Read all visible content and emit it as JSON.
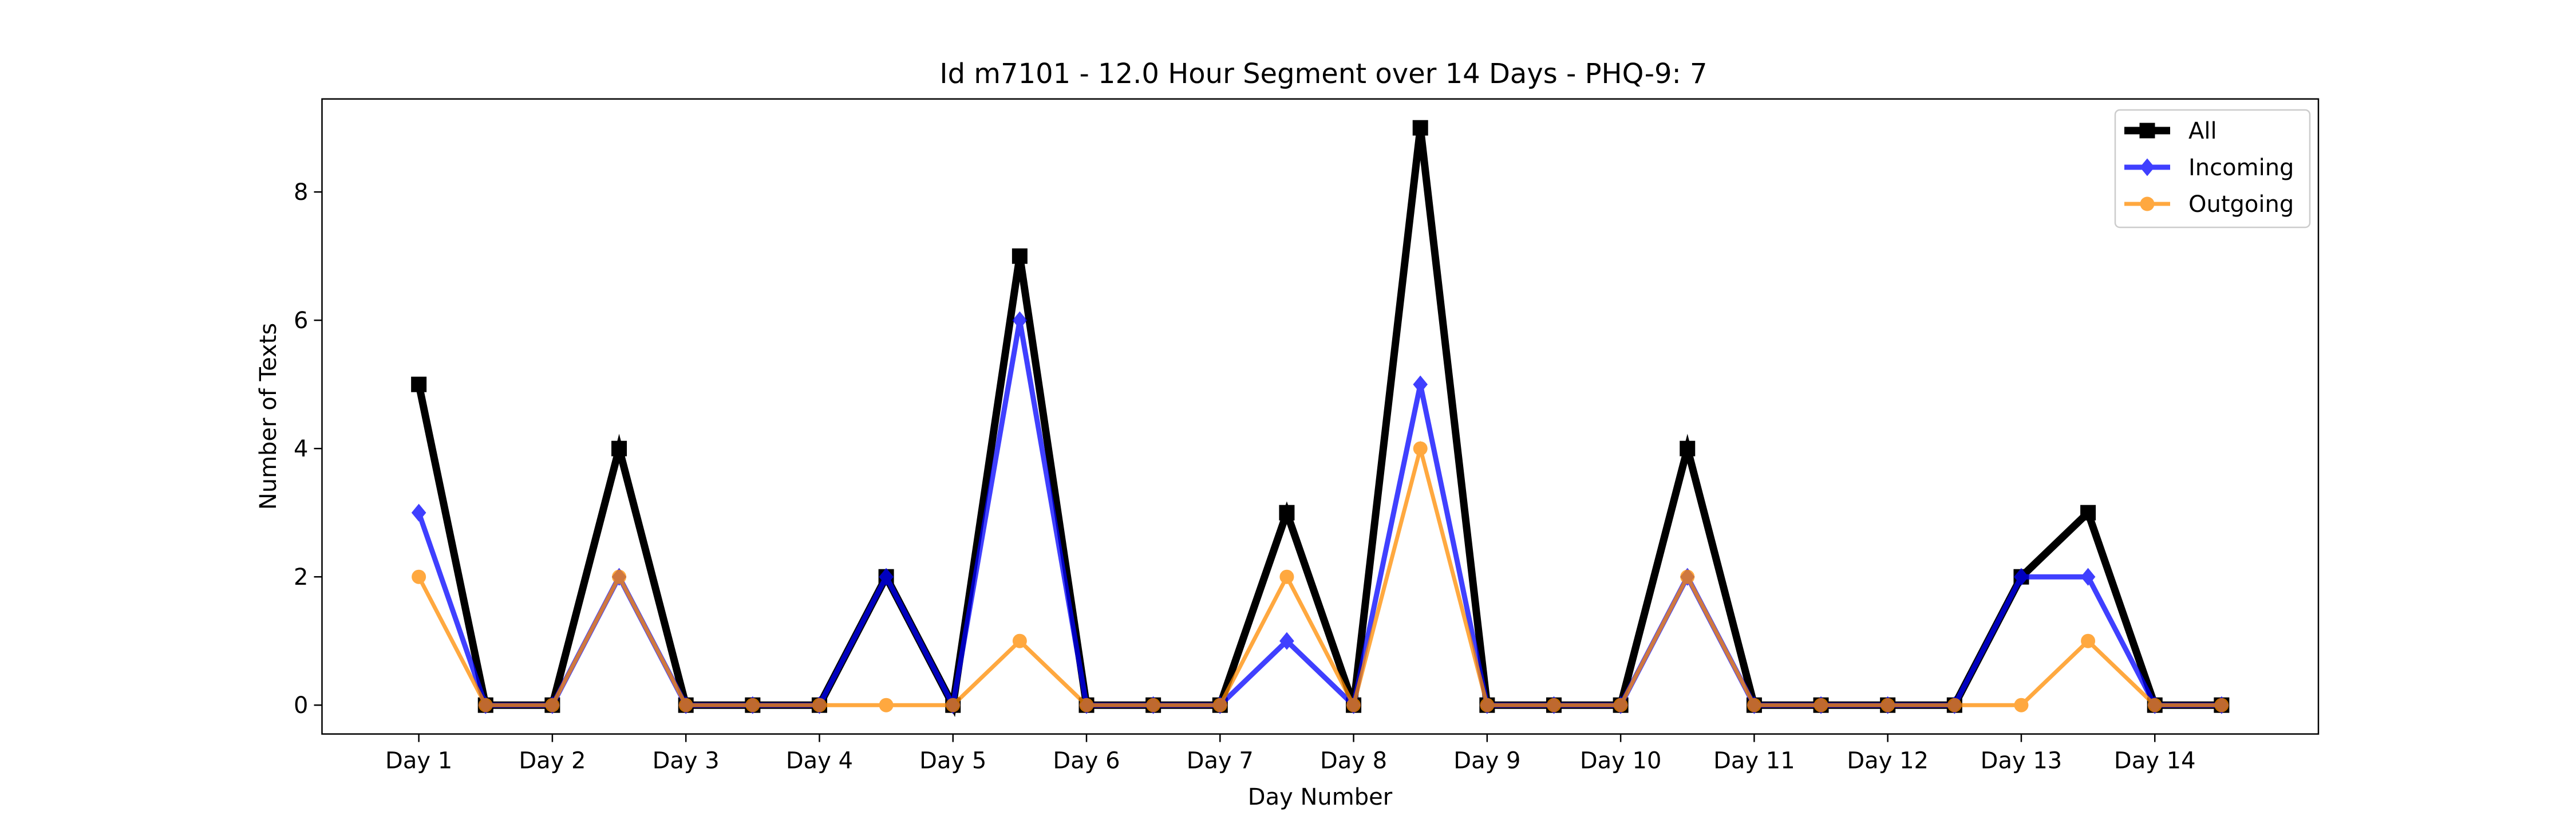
{
  "chart_data": {
    "type": "line",
    "title": "Id m7101 - 12.0 Hour Segment over 14 Days - PHQ-9: 7",
    "xlabel": "Day Number",
    "ylabel": "Number of Texts",
    "xlim": [
      -0.725,
      14.225
    ],
    "ylim": [
      -0.45,
      9.45
    ],
    "grid": false,
    "legend_position": "top-right",
    "x": [
      0,
      0.5,
      1,
      1.5,
      2,
      2.5,
      3,
      3.5,
      4,
      4.5,
      5,
      5.5,
      6,
      6.5,
      7,
      7.5,
      8,
      8.5,
      9,
      9.5,
      10,
      10.5,
      11,
      11.5,
      12,
      12.5,
      13,
      13.5
    ],
    "x_ticks": [
      {
        "pos": 0,
        "label": "Day 1"
      },
      {
        "pos": 1,
        "label": "Day 2"
      },
      {
        "pos": 2,
        "label": "Day 3"
      },
      {
        "pos": 3,
        "label": "Day 4"
      },
      {
        "pos": 4,
        "label": "Day 5"
      },
      {
        "pos": 5,
        "label": "Day 6"
      },
      {
        "pos": 6,
        "label": "Day 7"
      },
      {
        "pos": 7,
        "label": "Day 8"
      },
      {
        "pos": 8,
        "label": "Day 9"
      },
      {
        "pos": 9,
        "label": "Day 10"
      },
      {
        "pos": 10,
        "label": "Day 11"
      },
      {
        "pos": 11,
        "label": "Day 12"
      },
      {
        "pos": 12,
        "label": "Day 13"
      },
      {
        "pos": 13,
        "label": "Day 14"
      }
    ],
    "y_ticks": [
      {
        "pos": 0,
        "label": "0"
      },
      {
        "pos": 2,
        "label": "2"
      },
      {
        "pos": 4,
        "label": "4"
      },
      {
        "pos": 6,
        "label": "6"
      },
      {
        "pos": 8,
        "label": "8"
      }
    ],
    "series": [
      {
        "name": "All",
        "color": "#000000",
        "marker": "square",
        "values": [
          5,
          0,
          0,
          4,
          0,
          0,
          0,
          2,
          0,
          7,
          0,
          0,
          0,
          3,
          0,
          9,
          0,
          0,
          0,
          4,
          0,
          0,
          0,
          0,
          2,
          3,
          0,
          0
        ]
      },
      {
        "name": "Incoming",
        "color": "#0000ff",
        "marker": "diamond",
        "values": [
          3,
          0,
          0,
          2,
          0,
          0,
          0,
          2,
          0,
          6,
          0,
          0,
          0,
          1,
          0,
          5,
          0,
          0,
          0,
          2,
          0,
          0,
          0,
          0,
          2,
          2,
          0,
          0
        ]
      },
      {
        "name": "Outgoing",
        "color": "#ff8c00",
        "marker": "circle",
        "values": [
          2,
          0,
          0,
          2,
          0,
          0,
          0,
          0,
          0,
          1,
          0,
          0,
          0,
          2,
          0,
          4,
          0,
          0,
          0,
          2,
          0,
          0,
          0,
          0,
          0,
          1,
          0,
          0
        ]
      }
    ]
  }
}
